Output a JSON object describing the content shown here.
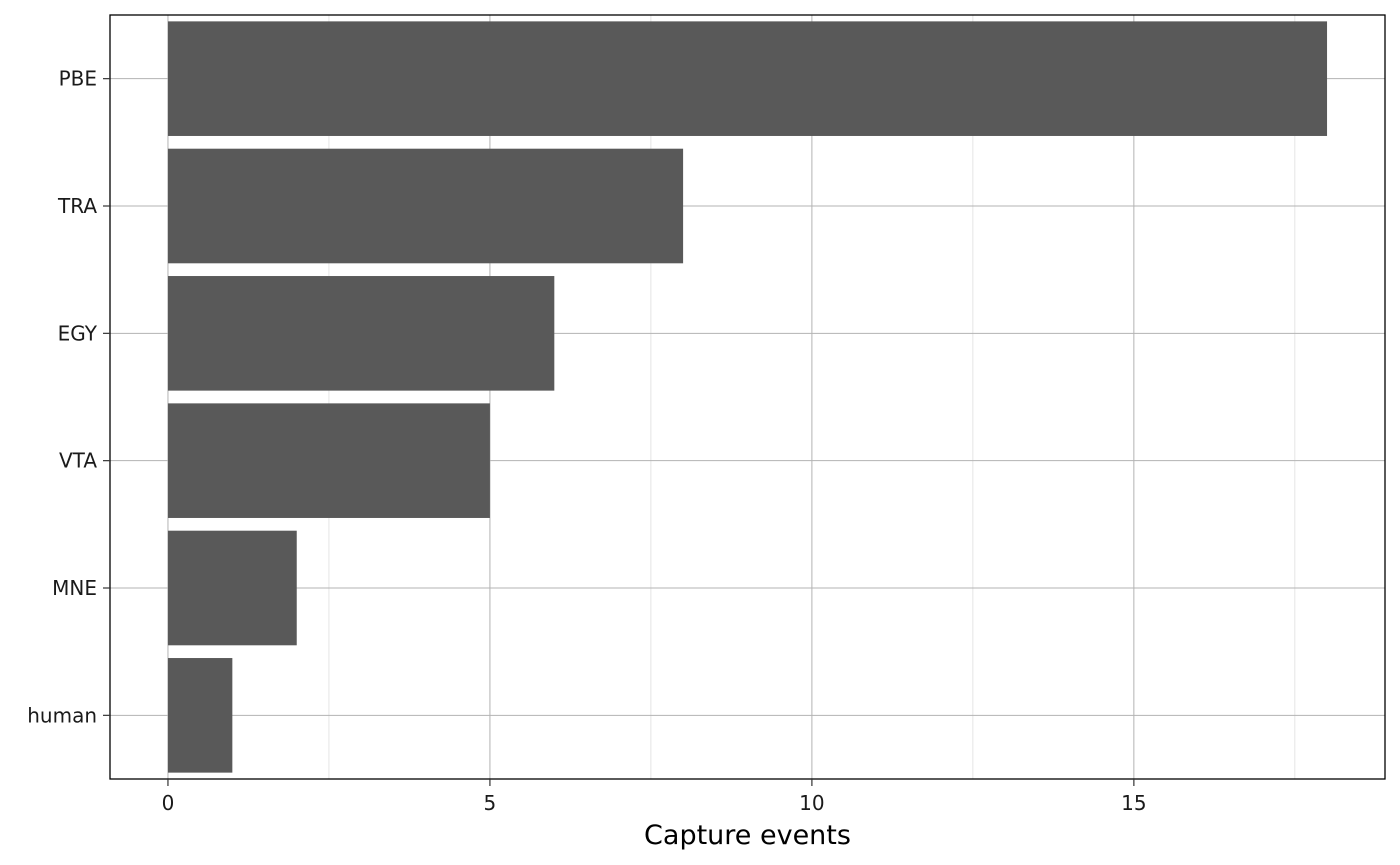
{
  "chart_data": {
    "type": "bar",
    "orientation": "horizontal",
    "categories": [
      "PBE",
      "TRA",
      "EGY",
      "VTA",
      "MNE",
      "human"
    ],
    "values": [
      18,
      8,
      6,
      5,
      2,
      1
    ],
    "xlabel": "Capture events",
    "ylabel": "",
    "title": "",
    "xlim": [
      -0.9,
      18.9
    ],
    "xticks": [
      0,
      5,
      10,
      15
    ],
    "xtick_labels": [
      "0",
      "5",
      "10",
      "15"
    ],
    "grid": true,
    "legend": "none",
    "bar_color": "#595959",
    "grid_major_color": "#b3b3b3",
    "grid_minor_color": "#dedede",
    "panel_border_color": "#000000"
  }
}
